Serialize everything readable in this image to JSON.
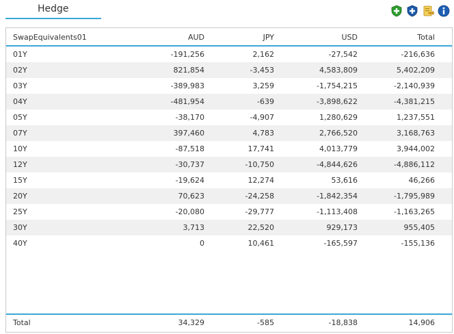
{
  "panel": {
    "title": "Hedge"
  },
  "toolbar": {
    "icons": [
      {
        "name": "add-green-icon",
        "color": "#2e9d2e"
      },
      {
        "name": "add-blue-icon",
        "color": "#1e5aa8"
      },
      {
        "name": "export-icon",
        "color": "#e3b53a"
      },
      {
        "name": "info-icon",
        "color": "#1e5fb4"
      }
    ]
  },
  "table": {
    "headers": [
      "SwapEquivalents01",
      "AUD",
      "JPY",
      "USD",
      "Total"
    ],
    "rows": [
      [
        "01Y",
        "-191,256",
        "2,162",
        "-27,542",
        "-216,636"
      ],
      [
        "02Y",
        "821,854",
        "-3,453",
        "4,583,809",
        "5,402,209"
      ],
      [
        "03Y",
        "-389,983",
        "3,259",
        "-1,754,215",
        "-2,140,939"
      ],
      [
        "04Y",
        "-481,954",
        "-639",
        "-3,898,622",
        "-4,381,215"
      ],
      [
        "05Y",
        "-38,170",
        "-4,907",
        "1,280,629",
        "1,237,551"
      ],
      [
        "07Y",
        "397,460",
        "4,783",
        "2,766,520",
        "3,168,763"
      ],
      [
        "10Y",
        "-87,518",
        "17,741",
        "4,013,779",
        "3,944,002"
      ],
      [
        "12Y",
        "-30,737",
        "-10,750",
        "-4,844,626",
        "-4,886,112"
      ],
      [
        "15Y",
        "-19,624",
        "12,274",
        "53,616",
        "46,266"
      ],
      [
        "20Y",
        "70,623",
        "-24,258",
        "-1,842,354",
        "-1,795,989"
      ],
      [
        "25Y",
        "-20,080",
        "-29,777",
        "-1,113,408",
        "-1,163,265"
      ],
      [
        "30Y",
        "3,713",
        "22,520",
        "929,173",
        "955,405"
      ],
      [
        "40Y",
        "0",
        "10,461",
        "-165,597",
        "-155,136"
      ]
    ],
    "footer": [
      "Total",
      "34,329",
      "-585",
      "-18,838",
      "14,906"
    ]
  }
}
